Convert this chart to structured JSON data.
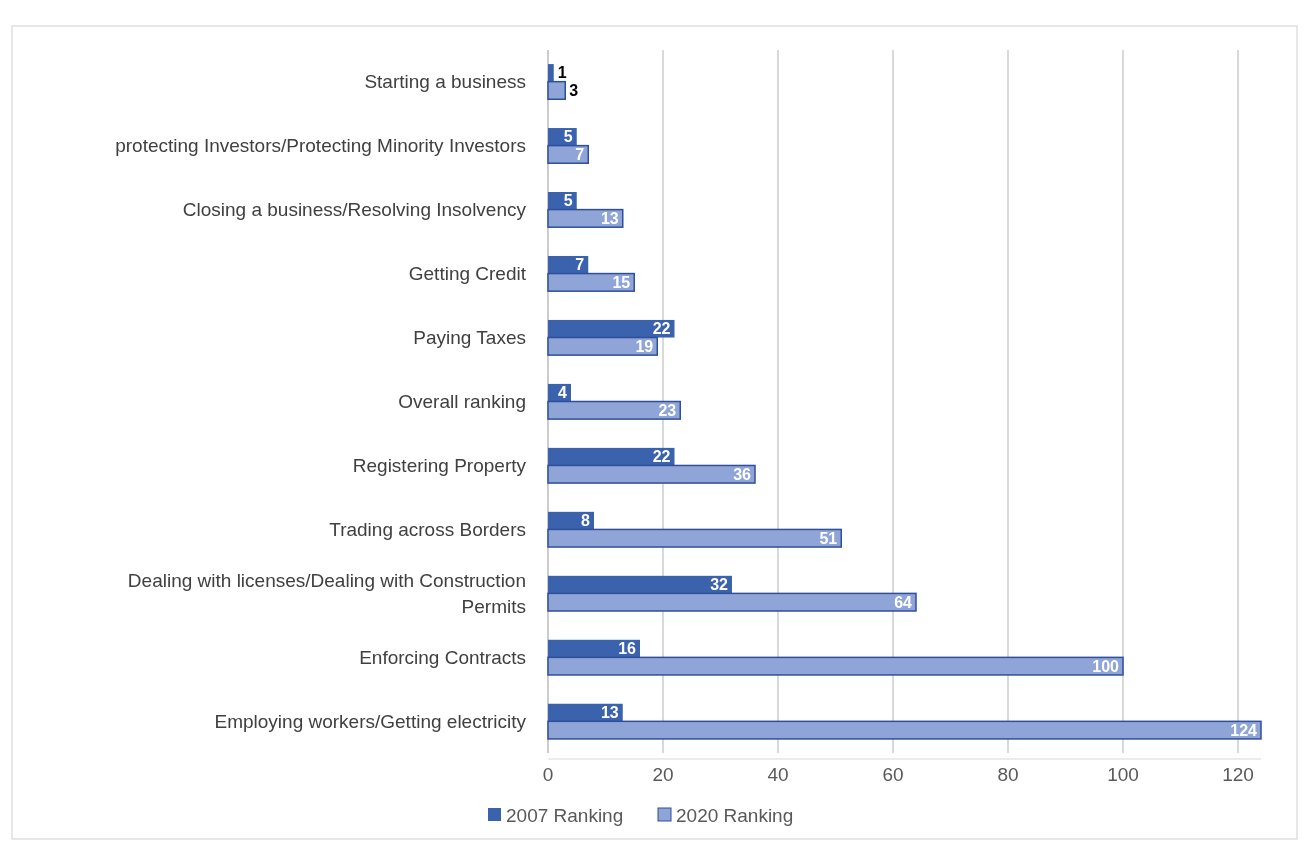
{
  "chart_data": {
    "type": "bar",
    "orientation": "horizontal",
    "categories": [
      "Starting a business",
      "protecting Investors/Protecting Minority Investors",
      "Closing a business/Resolving Insolvency",
      "Getting Credit",
      "Paying Taxes",
      "Overall ranking",
      "Registering Property",
      "Trading across Borders",
      "Dealing with licenses/Dealing with Construction Permits",
      "Enforcing Contracts",
      "Employing workers/Getting electricity"
    ],
    "series": [
      {
        "name": "2007 Ranking",
        "color": "#3a62ad",
        "values": [
          1,
          5,
          5,
          7,
          22,
          4,
          22,
          8,
          32,
          16,
          13
        ]
      },
      {
        "name": "2020 Ranking",
        "color": "#8fa5d8",
        "values": [
          3,
          7,
          13,
          15,
          19,
          23,
          36,
          51,
          64,
          100,
          124
        ]
      }
    ],
    "xlim": [
      0,
      124
    ],
    "xticks": [
      0,
      20,
      40,
      60,
      80,
      100,
      120
    ],
    "grid": "x",
    "legend": "bottom",
    "data_labels": true
  }
}
